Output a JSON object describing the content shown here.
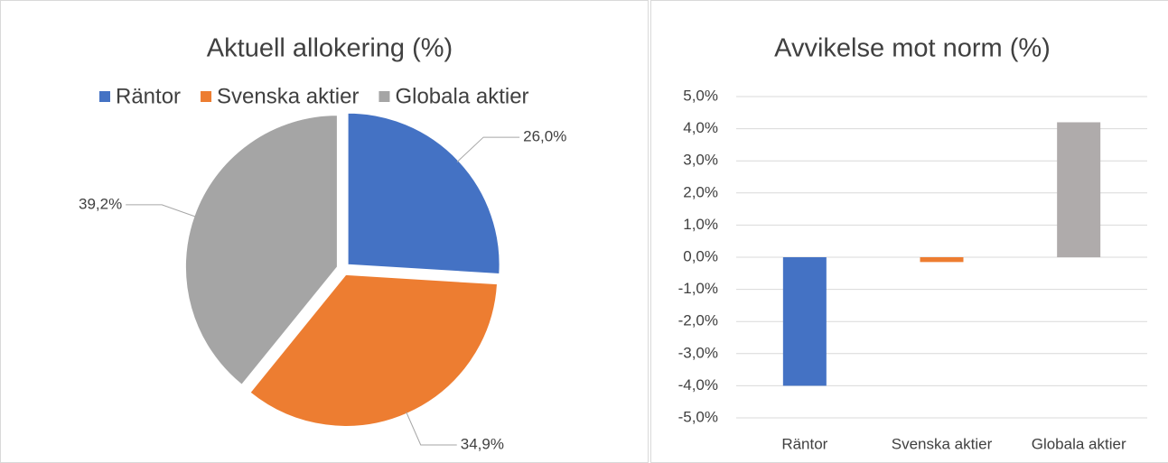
{
  "chart_data": [
    {
      "type": "pie",
      "title": "Aktuell allokering (%)",
      "categories": [
        "Räntor",
        "Svenska aktier",
        "Globala aktier"
      ],
      "values": [
        26.0,
        34.9,
        39.2
      ],
      "value_labels": [
        "26,0%",
        "34,9%",
        "39,2%"
      ],
      "colors": [
        "#4472c4",
        "#ed7d31",
        "#a5a5a5"
      ],
      "legend": "top"
    },
    {
      "type": "bar",
      "title": "Avvikelse mot norm (%)",
      "categories": [
        "Räntor",
        "Svenska aktier",
        "Globala aktier"
      ],
      "values": [
        -4.0,
        -0.15,
        4.2
      ],
      "colors": [
        "#4472c4",
        "#ed7d31",
        "#afabab"
      ],
      "ylim": [
        -5,
        5
      ],
      "yticks": [
        {
          "value": -5,
          "label": "-5,0%"
        },
        {
          "value": -4,
          "label": "-4,0%"
        },
        {
          "value": -3,
          "label": "-3,0%"
        },
        {
          "value": -2,
          "label": "-2,0%"
        },
        {
          "value": -1,
          "label": "-1,0%"
        },
        {
          "value": 0,
          "label": "0,0%"
        },
        {
          "value": 1,
          "label": "1,0%"
        },
        {
          "value": 2,
          "label": "2,0%"
        },
        {
          "value": 3,
          "label": "3,0%"
        },
        {
          "value": 4,
          "label": "4,0%"
        },
        {
          "value": 5,
          "label": "5,0%"
        }
      ],
      "grid": true
    }
  ]
}
